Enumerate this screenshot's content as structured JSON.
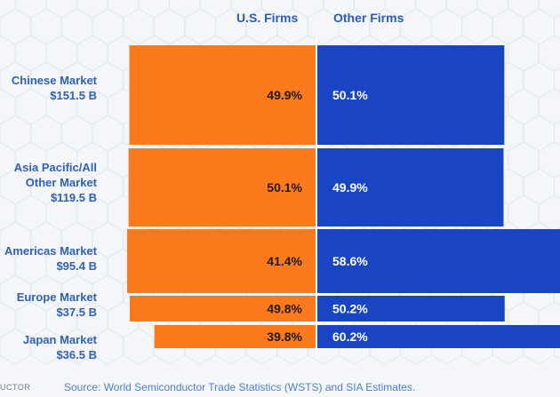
{
  "chart_data": {
    "type": "bar",
    "subtype": "stacked-horizontal-share",
    "series": [
      {
        "name": "U.S. Firms",
        "color": "#fa7a1c"
      },
      {
        "name": "Other Firms",
        "color": "#1a45c2"
      }
    ],
    "rows": [
      {
        "label_lines": [
          "Chinese Market",
          "$151.5 B"
        ],
        "market_size": 151.5,
        "us": "49.9%",
        "other": "50.1%"
      },
      {
        "label_lines": [
          "Asia Pacific/All",
          "Other Market",
          "$119.5 B"
        ],
        "market_size": 119.5,
        "us": "50.1%",
        "other": "49.9%"
      },
      {
        "label_lines": [
          "Americas Market",
          "$95.4 B"
        ],
        "market_size": 95.4,
        "us": "41.4%",
        "other": "58.6%"
      },
      {
        "label_lines": [
          "Europe Market",
          "$37.5 B"
        ],
        "market_size": 37.5,
        "us": "49.8%",
        "other": "50.2%"
      },
      {
        "label_lines": [
          "Japan Market",
          "$36.5 B"
        ],
        "market_size": 36.5,
        "us": "39.8%",
        "other": "60.2%"
      }
    ],
    "title": "",
    "source": "Source: World Semiconductor Trade Statistics (WSTS) and SIA Estimates."
  },
  "brand_fragment": "UCTOR"
}
